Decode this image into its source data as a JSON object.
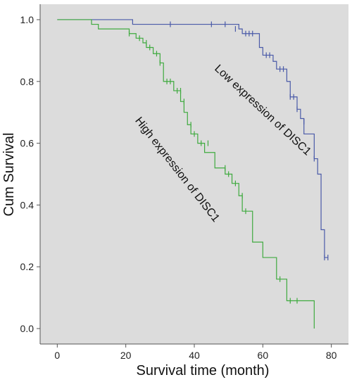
{
  "chart_data": {
    "type": "line",
    "chart_kind": "kaplan-meier survival curve",
    "xlabel": "Survival time (month)",
    "ylabel": "Cum Survival",
    "xlim": [
      -5,
      85
    ],
    "ylim": [
      -0.05,
      1.05
    ],
    "x_ticks": [
      0,
      20,
      40,
      60,
      80
    ],
    "y_ticks": [
      0.0,
      0.2,
      0.4,
      0.6,
      0.8,
      1.0
    ],
    "y_tick_labels": [
      "0.0",
      "0.2",
      "0.4",
      "0.6",
      "0.8",
      "1.0"
    ],
    "background": "#dcdcdc",
    "grid": false,
    "annotations": [
      {
        "text": "Low expression of DISC1",
        "series": "low"
      },
      {
        "text": "High expression of DISC1",
        "series": "high"
      }
    ],
    "series": [
      {
        "key": "low",
        "color": "#4a5aa8",
        "steps": [
          [
            0,
            1.0
          ],
          [
            22,
            0.985
          ],
          [
            53,
            0.97
          ],
          [
            54,
            0.955
          ],
          [
            59,
            0.91
          ],
          [
            60,
            0.885
          ],
          [
            63,
            0.865
          ],
          [
            64,
            0.84
          ],
          [
            67,
            0.8
          ],
          [
            68,
            0.75
          ],
          [
            70,
            0.71
          ],
          [
            71,
            0.68
          ],
          [
            72,
            0.63
          ],
          [
            75,
            0.55
          ],
          [
            76,
            0.5
          ],
          [
            77,
            0.32
          ],
          [
            78,
            0.23
          ],
          [
            79,
            0.23
          ]
        ],
        "censored": [
          [
            33,
            0.985
          ],
          [
            45,
            0.985
          ],
          [
            49,
            0.985
          ],
          [
            52,
            0.97
          ],
          [
            55,
            0.955
          ],
          [
            56,
            0.955
          ],
          [
            57,
            0.955
          ],
          [
            61,
            0.885
          ],
          [
            62,
            0.885
          ],
          [
            65,
            0.84
          ],
          [
            66,
            0.84
          ],
          [
            68,
            0.75
          ],
          [
            69,
            0.75
          ],
          [
            70,
            0.71
          ],
          [
            72,
            0.67
          ],
          [
            75,
            0.55
          ],
          [
            78,
            0.23
          ],
          [
            79,
            0.23
          ]
        ]
      },
      {
        "key": "high",
        "color": "#3faa3f",
        "steps": [
          [
            0,
            1.0
          ],
          [
            10,
            0.985
          ],
          [
            12,
            0.97
          ],
          [
            21,
            0.955
          ],
          [
            23,
            0.94
          ],
          [
            25,
            0.925
          ],
          [
            26,
            0.91
          ],
          [
            28,
            0.89
          ],
          [
            30,
            0.86
          ],
          [
            31,
            0.8
          ],
          [
            34,
            0.77
          ],
          [
            36,
            0.735
          ],
          [
            37,
            0.7
          ],
          [
            38,
            0.66
          ],
          [
            39,
            0.63
          ],
          [
            41,
            0.6
          ],
          [
            43,
            0.57
          ],
          [
            46,
            0.52
          ],
          [
            49,
            0.5
          ],
          [
            51,
            0.47
          ],
          [
            53,
            0.43
          ],
          [
            54,
            0.38
          ],
          [
            57,
            0.28
          ],
          [
            60,
            0.23
          ],
          [
            64,
            0.16
          ],
          [
            67,
            0.09
          ],
          [
            74,
            0.09
          ],
          [
            75,
            0.0
          ]
        ],
        "censored": [
          [
            21,
            0.955
          ],
          [
            24,
            0.94
          ],
          [
            26,
            0.925
          ],
          [
            27,
            0.91
          ],
          [
            29,
            0.89
          ],
          [
            30,
            0.86
          ],
          [
            32,
            0.8
          ],
          [
            33,
            0.8
          ],
          [
            35,
            0.77
          ],
          [
            36,
            0.77
          ],
          [
            37,
            0.735
          ],
          [
            39,
            0.66
          ],
          [
            40,
            0.63
          ],
          [
            42,
            0.6
          ],
          [
            44,
            0.6
          ],
          [
            49,
            0.52
          ],
          [
            50,
            0.5
          ],
          [
            52,
            0.47
          ],
          [
            54,
            0.43
          ],
          [
            55,
            0.38
          ],
          [
            65,
            0.16
          ],
          [
            68,
            0.09
          ],
          [
            70,
            0.09
          ]
        ]
      }
    ]
  }
}
